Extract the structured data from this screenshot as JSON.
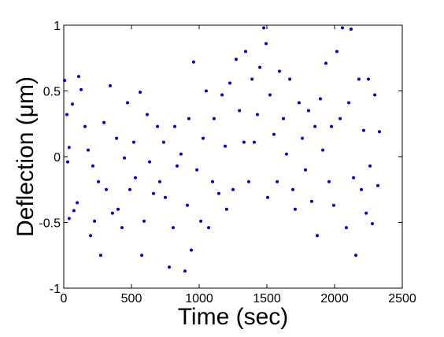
{
  "chart_data": {
    "type": "scatter",
    "xlabel": "Time (sec)",
    "ylabel": "Deflection (μm)",
    "xlim": [
      0,
      2500
    ],
    "xticks": [
      0,
      500,
      1000,
      1500,
      2000,
      2500
    ],
    "ylim": [
      -1,
      1
    ],
    "yticks": [
      -1,
      -0.5,
      0,
      0.5,
      1
    ],
    "grid": false,
    "series": [
      {
        "color": "#0000cc",
        "x": [
          6,
          23,
          40,
          29,
          40,
          64,
          75,
          110,
          128,
          99,
          157,
          180,
          198,
          215,
          227,
          256,
          273,
          297,
          314,
          343,
          360,
          390,
          401,
          430,
          448,
          471,
          488,
          517,
          529,
          564,
          576,
          593,
          616,
          634,
          663,
          692,
          709,
          738,
          750,
          779,
          808,
          820,
          837,
          866,
          895,
          913,
          924,
          942,
          959,
          983,
          1012,
          1029,
          1052,
          1070,
          1099,
          1110,
          1145,
          1169,
          1192,
          1203,
          1227,
          1250,
          1273,
          1297,
          1331,
          1343,
          1366,
          1390,
          1407,
          1430,
          1448,
          1477,
          1494,
          1506,
          1523,
          1552,
          1576,
          1593,
          1622,
          1645,
          1669,
          1692,
          1709,
          1738,
          1762,
          1785,
          1808,
          1831,
          1855,
          1872,
          1895,
          1913,
          1936,
          1959,
          1977,
          1994,
          2017,
          2041,
          2058,
          2087,
          2105,
          2122,
          2140,
          2157,
          2180,
          2198,
          2215,
          2233,
          2250,
          2262,
          2279,
          2297,
          2320,
          2331
        ],
        "values": [
          0.58,
          0.32,
          0.07,
          -0.04,
          -0.47,
          0.4,
          -0.41,
          0.61,
          0.51,
          -0.35,
          0.23,
          0.05,
          -0.6,
          -0.07,
          -0.49,
          -0.19,
          -0.75,
          0.26,
          -0.25,
          0.54,
          -0.43,
          0.14,
          -0.4,
          -0.54,
          -0.01,
          0.41,
          -0.25,
          0.11,
          -0.16,
          0.49,
          -0.75,
          -0.49,
          0.32,
          -0.04,
          -0.28,
          0.23,
          -0.19,
          0.11,
          -0.31,
          -0.84,
          -0.54,
          0.23,
          -0.07,
          0.02,
          -0.87,
          -0.37,
          0.29,
          -0.71,
          0.72,
          -0.1,
          -0.49,
          0.14,
          0.5,
          -0.54,
          -0.19,
          0.29,
          -0.28,
          0.47,
          0.08,
          -0.4,
          0.56,
          -0.25,
          0.74,
          0.35,
          0.11,
          0.8,
          -0.19,
          0.59,
          0.11,
          0.32,
          0.68,
          0.98,
          0.86,
          -0.31,
          0.47,
          0.17,
          -0.19,
          0.65,
          0.29,
          0.02,
          0.59,
          -0.25,
          -0.4,
          0.41,
          0.14,
          -0.1,
          0.35,
          -0.34,
          0.23,
          -0.6,
          0.44,
          0.05,
          0.71,
          -0.19,
          0.23,
          -0.37,
          0.8,
          0.29,
          0.98,
          -0.54,
          0.41,
          0.97,
          -0.16,
          -0.75,
          0.59,
          -0.25,
          0.2,
          -0.43,
          0.59,
          -0.07,
          -0.51,
          0.47,
          -0.22,
          0.19
        ]
      }
    ]
  }
}
